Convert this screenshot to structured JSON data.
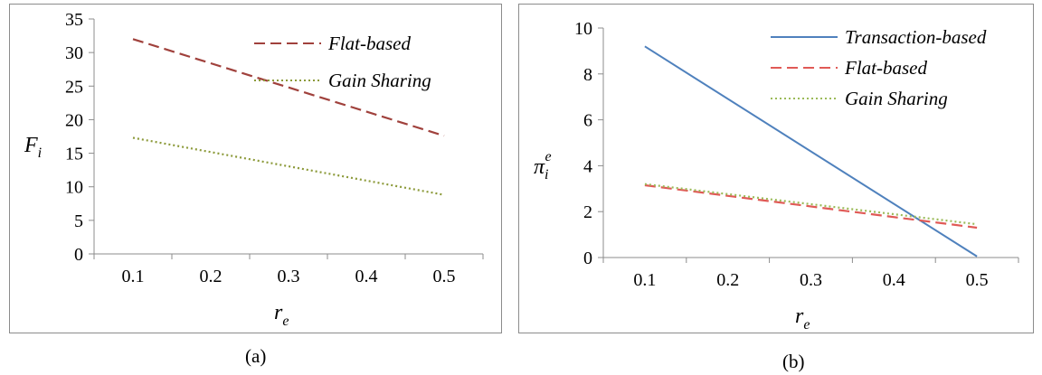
{
  "chart_data": [
    {
      "type": "line",
      "panel": "(a)",
      "xlabel": "r",
      "xlabel_sub": "e",
      "ylabel": "F",
      "ylabel_sub": "i",
      "ylabel_sup": "",
      "xlim": [
        0.05,
        0.55
      ],
      "ylim": [
        0,
        35
      ],
      "x_ticks": [
        "0.1",
        "0.2",
        "0.3",
        "0.4",
        "0.5"
      ],
      "y_ticks": [
        "0",
        "5",
        "10",
        "15",
        "20",
        "25",
        "30",
        "35"
      ],
      "grid": false,
      "legend_position": "top-right",
      "series": [
        {
          "name": "Flat-based",
          "color": "#a0413c",
          "style": "dashed",
          "x": [
            0.1,
            0.5
          ],
          "y": [
            32.0,
            17.6
          ]
        },
        {
          "name": "Gain Sharing",
          "color": "#8c9a3a",
          "style": "dotted",
          "x": [
            0.1,
            0.5
          ],
          "y": [
            17.3,
            8.8
          ]
        }
      ]
    },
    {
      "type": "line",
      "panel": "(b)",
      "xlabel": "r",
      "xlabel_sub": "e",
      "ylabel": "π",
      "ylabel_sub": "i",
      "ylabel_sup": "e",
      "xlim": [
        0.05,
        0.55
      ],
      "ylim": [
        0,
        10
      ],
      "x_ticks": [
        "0.1",
        "0.2",
        "0.3",
        "0.4",
        "0.5"
      ],
      "y_ticks": [
        "0",
        "2",
        "4",
        "6",
        "8",
        "10"
      ],
      "grid": false,
      "legend_position": "top-right",
      "series": [
        {
          "name": "Transaction-based",
          "color": "#4f81bd",
          "style": "solid",
          "x": [
            0.1,
            0.5
          ],
          "y": [
            9.2,
            0.05
          ]
        },
        {
          "name": "Flat-based",
          "color": "#e05a56",
          "style": "dashed",
          "x": [
            0.1,
            0.5
          ],
          "y": [
            3.15,
            1.3
          ]
        },
        {
          "name": "Gain Sharing",
          "color": "#9bbb59",
          "style": "dotted",
          "x": [
            0.1,
            0.5
          ],
          "y": [
            3.2,
            1.45
          ]
        }
      ]
    }
  ]
}
